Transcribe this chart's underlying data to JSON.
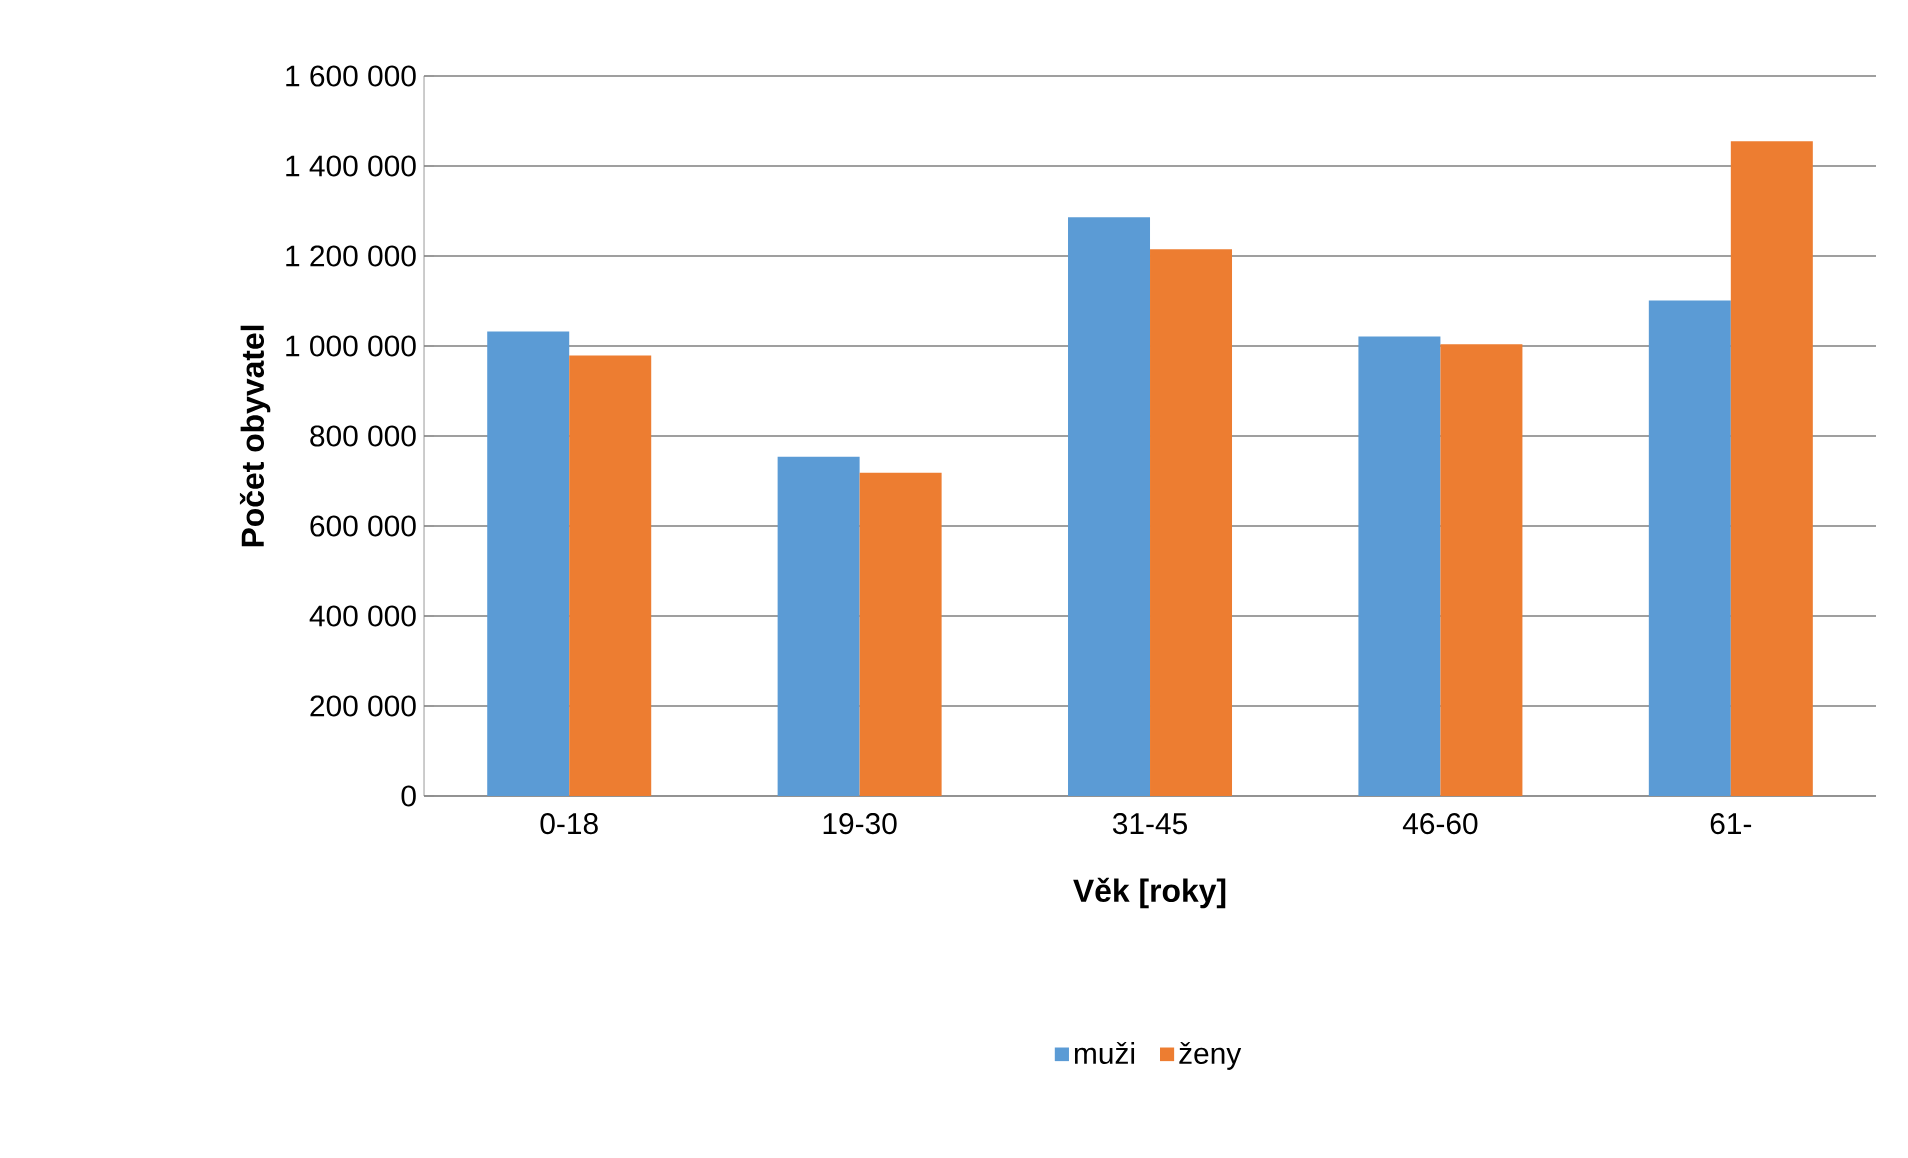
{
  "chart_data": {
    "type": "bar",
    "xlabel": "Věk [roky]",
    "ylabel": "Počet obyvatel",
    "categories": [
      "0-18",
      "19-30",
      "31-45",
      "46-60",
      "61-"
    ],
    "series": [
      {
        "name": "muži",
        "color": "#5b9bd5",
        "values": [
          1032000,
          754000,
          1286000,
          1021000,
          1101000
        ]
      },
      {
        "name": "ženy",
        "color": "#ed7d31",
        "values": [
          979000,
          718000,
          1215000,
          1004000,
          1455000
        ]
      }
    ],
    "ylim": [
      0,
      1600000
    ],
    "yticks": [
      {
        "value": 0,
        "label": "0"
      },
      {
        "value": 200000,
        "label": "200 000"
      },
      {
        "value": 400000,
        "label": "400 000"
      },
      {
        "value": 600000,
        "label": "600 000"
      },
      {
        "value": 800000,
        "label": "800 000"
      },
      {
        "value": 1000000,
        "label": "1 000 000"
      },
      {
        "value": 1200000,
        "label": "1 200 000"
      },
      {
        "value": 1400000,
        "label": "1 400 000"
      },
      {
        "value": 1600000,
        "label": "1 600 000"
      }
    ],
    "grid": "y",
    "legend": "bottom"
  }
}
